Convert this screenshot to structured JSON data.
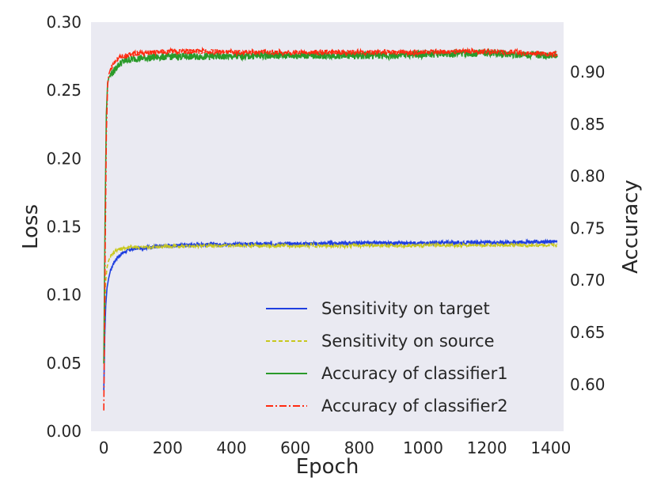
{
  "chart_data": {
    "type": "line",
    "title": "",
    "xlabel": "Epoch",
    "ylabel_left": "Loss",
    "ylabel_right": "Accuracy",
    "xlim": [
      -40,
      1440
    ],
    "ylim_left": [
      0.0,
      0.3
    ],
    "ylim_right": [
      0.555,
      0.948
    ],
    "x_ticks": [
      0,
      200,
      400,
      600,
      800,
      1000,
      1200,
      1400
    ],
    "x_tick_labels": [
      "0",
      "200",
      "400",
      "600",
      "800",
      "1000",
      "1200",
      "1400"
    ],
    "y_left_ticks": [
      0.0,
      0.05,
      0.1,
      0.15,
      0.2,
      0.25,
      0.3
    ],
    "y_left_tick_labels": [
      "0.00",
      "0.05",
      "0.10",
      "0.15",
      "0.20",
      "0.25",
      "0.30"
    ],
    "y_right_ticks": [
      0.6,
      0.65,
      0.7,
      0.75,
      0.8,
      0.85,
      0.9
    ],
    "y_right_tick_labels": [
      "0.60",
      "0.65",
      "0.70",
      "0.75",
      "0.80",
      "0.85",
      "0.90"
    ],
    "grid": false,
    "background": "#eaeaf2",
    "legend_position": "lower-right",
    "series": [
      {
        "name": "Sensitivity on target",
        "axis": "left",
        "color": "#1f3fe0",
        "style": "solid",
        "noise": 0.0012,
        "x": [
          0,
          3,
          6,
          10,
          15,
          20,
          30,
          40,
          60,
          80,
          100,
          150,
          200,
          300,
          400,
          600,
          800,
          1000,
          1200,
          1420
        ],
        "y": [
          0.03,
          0.07,
          0.092,
          0.105,
          0.112,
          0.117,
          0.123,
          0.127,
          0.131,
          0.133,
          0.134,
          0.135,
          0.136,
          0.137,
          0.137,
          0.1375,
          0.138,
          0.138,
          0.1385,
          0.139
        ]
      },
      {
        "name": "Sensitivity on source",
        "axis": "left",
        "color": "#c8c81e",
        "style": "dashed",
        "noise": 0.0012,
        "x": [
          0,
          3,
          6,
          10,
          15,
          20,
          30,
          40,
          60,
          80,
          100,
          150,
          200,
          300,
          400,
          600,
          800,
          1000,
          1200,
          1420
        ],
        "y": [
          0.05,
          0.09,
          0.11,
          0.12,
          0.125,
          0.128,
          0.131,
          0.133,
          0.134,
          0.135,
          0.135,
          0.135,
          0.1355,
          0.136,
          0.136,
          0.136,
          0.136,
          0.1362,
          0.1365,
          0.1365
        ]
      },
      {
        "name": "Accuracy of classifier1",
        "axis": "right",
        "color": "#2a9a2a",
        "style": "solid",
        "noise": 0.0035,
        "x": [
          0,
          4,
          8,
          12,
          16,
          20,
          25,
          30,
          40,
          50,
          60,
          80,
          100,
          150,
          200,
          300,
          400,
          500,
          600,
          700,
          800,
          900,
          1000,
          1100,
          1200,
          1300,
          1420
        ],
        "y": [
          0.62,
          0.76,
          0.86,
          0.89,
          0.895,
          0.897,
          0.899,
          0.9,
          0.905,
          0.908,
          0.91,
          0.912,
          0.913,
          0.914,
          0.915,
          0.915,
          0.915,
          0.916,
          0.916,
          0.916,
          0.916,
          0.916,
          0.917,
          0.918,
          0.918,
          0.917,
          0.916
        ]
      },
      {
        "name": "Accuracy of classifier2",
        "axis": "right",
        "color": "#ff2a10",
        "style": "dashdot",
        "noise": 0.0025,
        "x": [
          0,
          4,
          8,
          12,
          16,
          20,
          25,
          30,
          40,
          50,
          60,
          80,
          100,
          150,
          200,
          300,
          400,
          500,
          600,
          700,
          800,
          900,
          1000,
          1100,
          1200,
          1300,
          1420
        ],
        "y": [
          0.575,
          0.72,
          0.84,
          0.888,
          0.898,
          0.902,
          0.905,
          0.908,
          0.912,
          0.914,
          0.915,
          0.917,
          0.918,
          0.919,
          0.92,
          0.92,
          0.919,
          0.919,
          0.919,
          0.919,
          0.919,
          0.919,
          0.919,
          0.92,
          0.92,
          0.919,
          0.917
        ]
      }
    ]
  }
}
